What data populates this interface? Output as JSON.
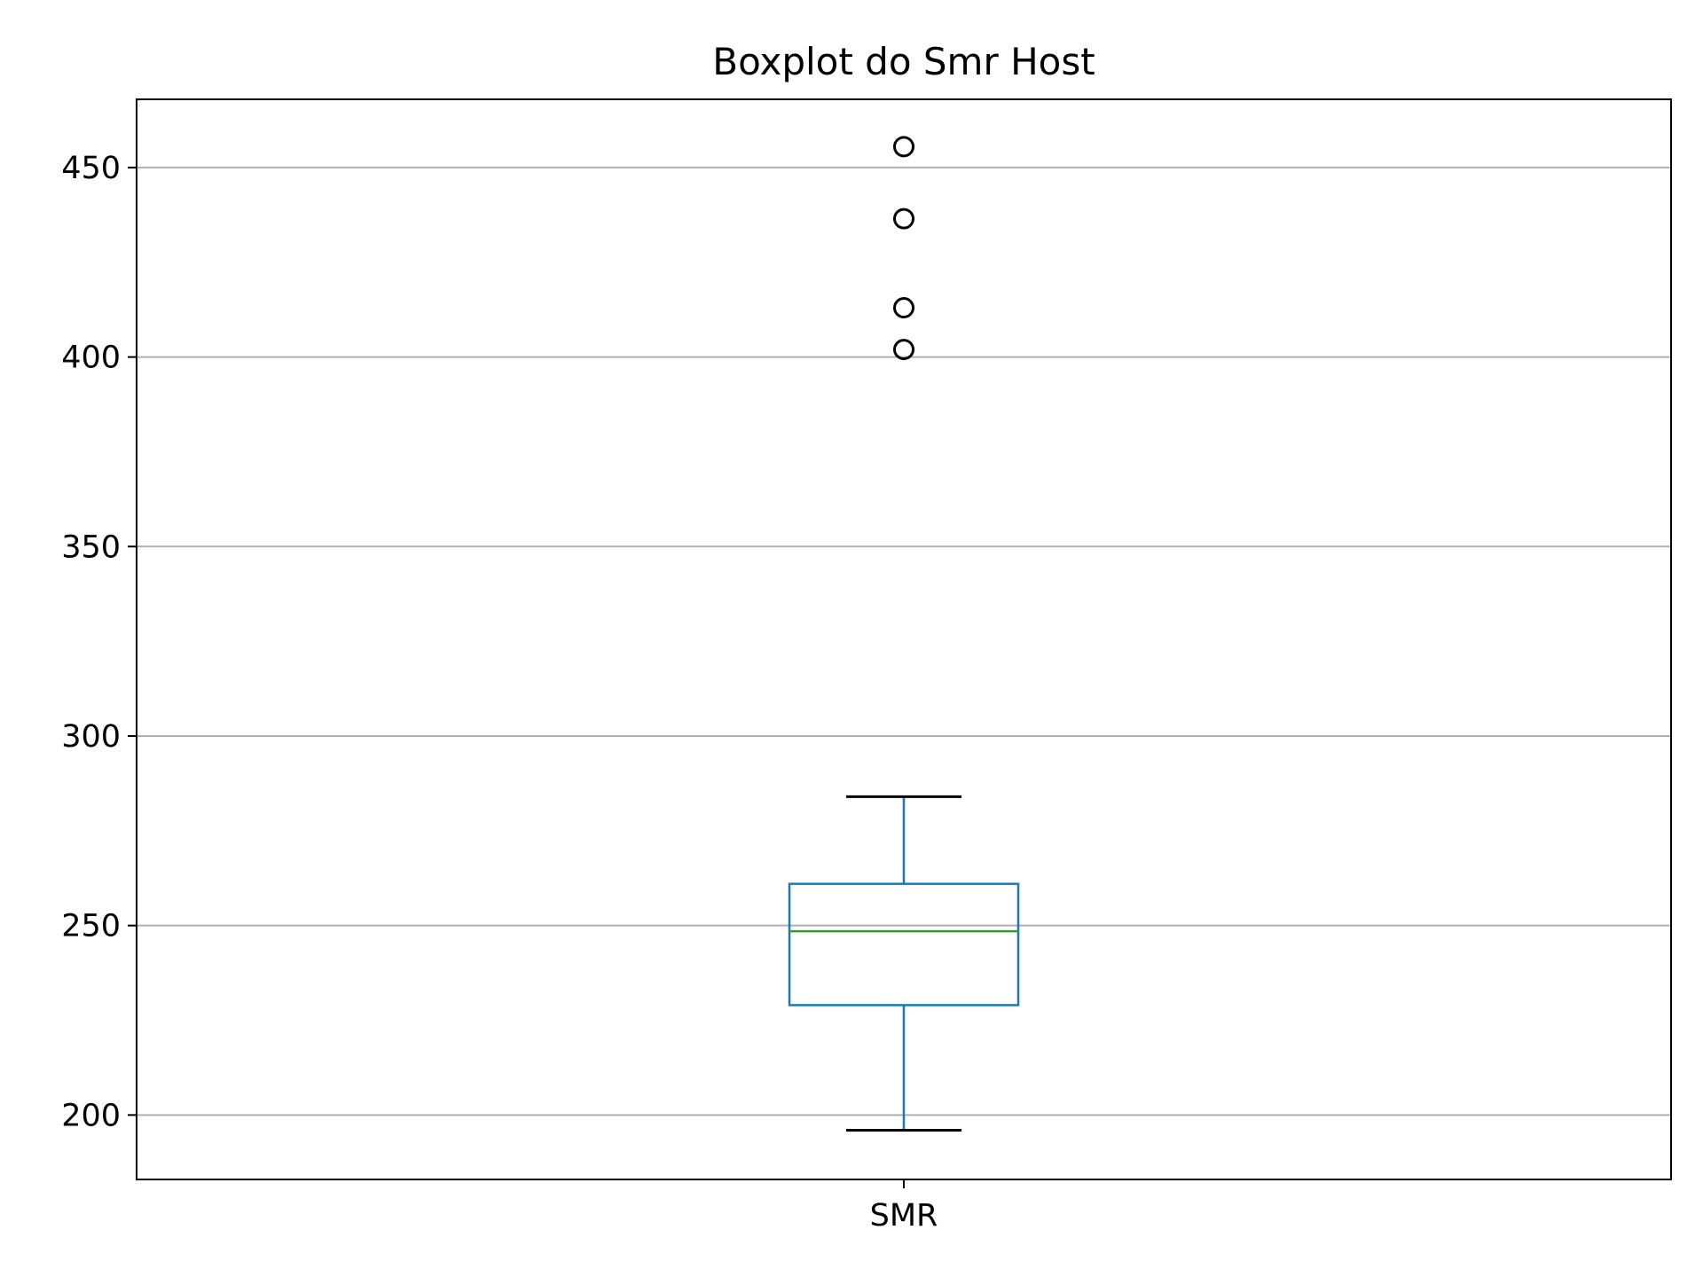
{
  "chart_data": {
    "type": "boxplot",
    "title": "Boxplot do Smr Host",
    "xlabel": "",
    "ylabel": "",
    "categories": [
      "SMR"
    ],
    "ylim": [
      183,
      468
    ],
    "yticks": [
      200,
      250,
      300,
      350,
      400,
      450
    ],
    "ytick_labels": [
      "200",
      "250",
      "300",
      "350",
      "400",
      "450"
    ],
    "grid": "horizontal",
    "boxes": [
      {
        "category": "SMR",
        "whisker_low": 196,
        "q1": 229,
        "median": 248.5,
        "q3": 261,
        "whisker_high": 284,
        "outliers": [
          402,
          413,
          436.5,
          455.5
        ]
      }
    ],
    "colors": {
      "box": "#1f77b4",
      "median": "#2ca02c",
      "whisker_cap": "#000000",
      "outlier": "#000000",
      "grid": "#b0b0b0"
    }
  }
}
